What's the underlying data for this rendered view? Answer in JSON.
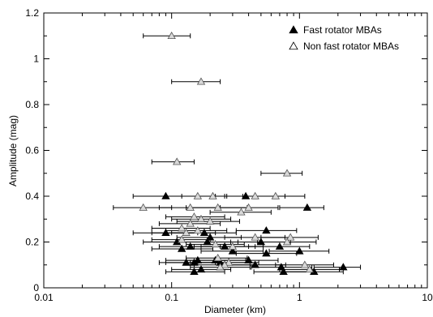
{
  "chart_data": {
    "type": "scatter",
    "xlabel": "Diameter (km)",
    "ylabel": "Amplitude (mag)",
    "x_scale": "log",
    "xlim": [
      0.01,
      10
    ],
    "ylim": [
      0,
      1.2
    ],
    "x_ticks": [
      {
        "value": 0.01,
        "label": "0.01"
      },
      {
        "value": 0.1,
        "label": "0.1"
      },
      {
        "value": 1,
        "label": "1"
      },
      {
        "value": 10,
        "label": "10"
      }
    ],
    "y_ticks": [
      {
        "value": 0,
        "label": "0"
      },
      {
        "value": 0.2,
        "label": "0.2"
      },
      {
        "value": 0.4,
        "label": "0.4"
      },
      {
        "value": 0.6,
        "label": "0.6"
      },
      {
        "value": 0.8,
        "label": "0.8"
      },
      {
        "value": 1,
        "label": "1"
      },
      {
        "value": 1.2,
        "label": "1.2"
      }
    ],
    "grid": false,
    "legend_position": "top-right",
    "series": [
      {
        "name": "Fast rotator MBAs",
        "marker": "filled-triangle",
        "color": "#000000",
        "points": [
          {
            "x": 0.09,
            "y": 0.4,
            "xerr": [
              0.05,
              0.16
            ]
          },
          {
            "x": 0.38,
            "y": 0.4,
            "xerr": [
              0.22,
              0.66
            ]
          },
          {
            "x": 1.15,
            "y": 0.35,
            "xerr": [
              0.7,
              1.55
            ]
          },
          {
            "x": 0.55,
            "y": 0.25,
            "xerr": [
              0.32,
              0.95
            ]
          },
          {
            "x": 0.09,
            "y": 0.24,
            "xerr": [
              0.05,
              0.16
            ]
          },
          {
            "x": 0.18,
            "y": 0.24,
            "xerr": [
              0.1,
              0.32
            ]
          },
          {
            "x": 0.2,
            "y": 0.22,
            "xerr": [
              0.11,
              0.35
            ]
          },
          {
            "x": 0.11,
            "y": 0.2,
            "xerr": [
              0.06,
              0.19
            ]
          },
          {
            "x": 0.19,
            "y": 0.2,
            "xerr": [
              0.11,
              0.33
            ]
          },
          {
            "x": 0.5,
            "y": 0.2,
            "xerr": [
              0.29,
              0.85
            ]
          },
          {
            "x": 0.14,
            "y": 0.18,
            "xerr": [
              0.08,
              0.24
            ]
          },
          {
            "x": 0.26,
            "y": 0.18,
            "xerr": [
              0.15,
              0.45
            ]
          },
          {
            "x": 0.7,
            "y": 0.18,
            "xerr": [
              0.4,
              1.2
            ]
          },
          {
            "x": 0.12,
            "y": 0.17,
            "xerr": [
              0.07,
              0.21
            ]
          },
          {
            "x": 0.3,
            "y": 0.16,
            "xerr": [
              0.17,
              0.52
            ]
          },
          {
            "x": 0.55,
            "y": 0.15,
            "xerr": [
              0.32,
              0.95
            ]
          },
          {
            "x": 1.0,
            "y": 0.16,
            "xerr": [
              0.58,
              1.7
            ]
          },
          {
            "x": 0.16,
            "y": 0.12,
            "xerr": [
              0.09,
              0.28
            ]
          },
          {
            "x": 0.22,
            "y": 0.12,
            "xerr": [
              0.13,
              0.38
            ]
          },
          {
            "x": 0.4,
            "y": 0.12,
            "xerr": [
              0.23,
              0.68
            ]
          },
          {
            "x": 0.13,
            "y": 0.11,
            "xerr": [
              0.08,
              0.22
            ]
          },
          {
            "x": 0.15,
            "y": 0.11,
            "xerr": [
              0.09,
              0.26
            ]
          },
          {
            "x": 0.24,
            "y": 0.11,
            "xerr": [
              0.14,
              0.41
            ]
          },
          {
            "x": 0.45,
            "y": 0.1,
            "xerr": [
              0.26,
              0.78
            ]
          },
          {
            "x": 0.72,
            "y": 0.09,
            "xerr": [
              0.42,
              1.25
            ]
          },
          {
            "x": 2.2,
            "y": 0.09,
            "xerr": [
              1.3,
              3.0
            ]
          },
          {
            "x": 0.17,
            "y": 0.08,
            "xerr": [
              0.1,
              0.29
            ]
          },
          {
            "x": 0.15,
            "y": 0.07,
            "xerr": [
              0.09,
              0.26
            ]
          },
          {
            "x": 0.75,
            "y": 0.07,
            "xerr": [
              0.44,
              1.3
            ]
          },
          {
            "x": 1.3,
            "y": 0.07,
            "xerr": [
              0.75,
              2.2
            ]
          }
        ]
      },
      {
        "name": "Non fast rotator MBAs",
        "marker": "open-triangle",
        "color": "#aaaaaa",
        "points": [
          {
            "x": 0.1,
            "y": 1.1,
            "xerr": [
              0.06,
              0.14
            ]
          },
          {
            "x": 0.17,
            "y": 0.9,
            "xerr": [
              0.1,
              0.24
            ]
          },
          {
            "x": 0.11,
            "y": 0.55,
            "xerr": [
              0.07,
              0.15
            ]
          },
          {
            "x": 0.8,
            "y": 0.5,
            "xerr": [
              0.5,
              1.05
            ]
          },
          {
            "x": 0.16,
            "y": 0.4,
            "xerr": [
              0.09,
              0.27
            ]
          },
          {
            "x": 0.21,
            "y": 0.4,
            "xerr": [
              0.12,
              0.36
            ]
          },
          {
            "x": 0.45,
            "y": 0.4,
            "xerr": [
              0.26,
              0.77
            ]
          },
          {
            "x": 0.65,
            "y": 0.4,
            "xerr": [
              0.38,
              1.1
            ]
          },
          {
            "x": 0.06,
            "y": 0.35,
            "xerr": [
              0.035,
              0.1
            ]
          },
          {
            "x": 0.14,
            "y": 0.35,
            "xerr": [
              0.08,
              0.24
            ]
          },
          {
            "x": 0.23,
            "y": 0.35,
            "xerr": [
              0.13,
              0.39
            ]
          },
          {
            "x": 0.4,
            "y": 0.35,
            "xerr": [
              0.23,
              0.68
            ]
          },
          {
            "x": 0.35,
            "y": 0.33,
            "xerr": [
              0.2,
              0.6
            ]
          },
          {
            "x": 0.15,
            "y": 0.31,
            "xerr": [
              0.09,
              0.26
            ]
          },
          {
            "x": 0.17,
            "y": 0.3,
            "xerr": [
              0.1,
              0.29
            ]
          },
          {
            "x": 0.2,
            "y": 0.29,
            "xerr": [
              0.11,
              0.34
            ]
          },
          {
            "x": 0.14,
            "y": 0.28,
            "xerr": [
              0.08,
              0.24
            ]
          },
          {
            "x": 0.12,
            "y": 0.26,
            "xerr": [
              0.07,
              0.2
            ]
          },
          {
            "x": 0.16,
            "y": 0.25,
            "xerr": [
              0.09,
              0.27
            ]
          },
          {
            "x": 0.13,
            "y": 0.24,
            "xerr": [
              0.07,
              0.22
            ]
          },
          {
            "x": 0.45,
            "y": 0.22,
            "xerr": [
              0.26,
              0.77
            ]
          },
          {
            "x": 0.85,
            "y": 0.22,
            "xerr": [
              0.5,
              1.4
            ]
          },
          {
            "x": 0.12,
            "y": 0.21,
            "xerr": [
              0.07,
              0.2
            ]
          },
          {
            "x": 0.8,
            "y": 0.2,
            "xerr": [
              0.47,
              1.35
            ]
          },
          {
            "x": 0.22,
            "y": 0.19,
            "xerr": [
              0.13,
              0.37
            ]
          },
          {
            "x": 0.3,
            "y": 0.18,
            "xerr": [
              0.17,
              0.52
            ]
          },
          {
            "x": 0.23,
            "y": 0.13,
            "xerr": [
              0.13,
              0.39
            ]
          },
          {
            "x": 0.28,
            "y": 0.11,
            "xerr": [
              0.16,
              0.48
            ]
          },
          {
            "x": 0.26,
            "y": 0.1,
            "xerr": [
              0.15,
              0.45
            ]
          },
          {
            "x": 1.1,
            "y": 0.1,
            "xerr": [
              0.65,
              1.85
            ]
          },
          {
            "x": 0.24,
            "y": 0.09,
            "xerr": [
              0.14,
              0.41
            ]
          },
          {
            "x": 1.2,
            "y": 0.08,
            "xerr": [
              0.7,
              2.05
            ]
          }
        ]
      }
    ]
  }
}
